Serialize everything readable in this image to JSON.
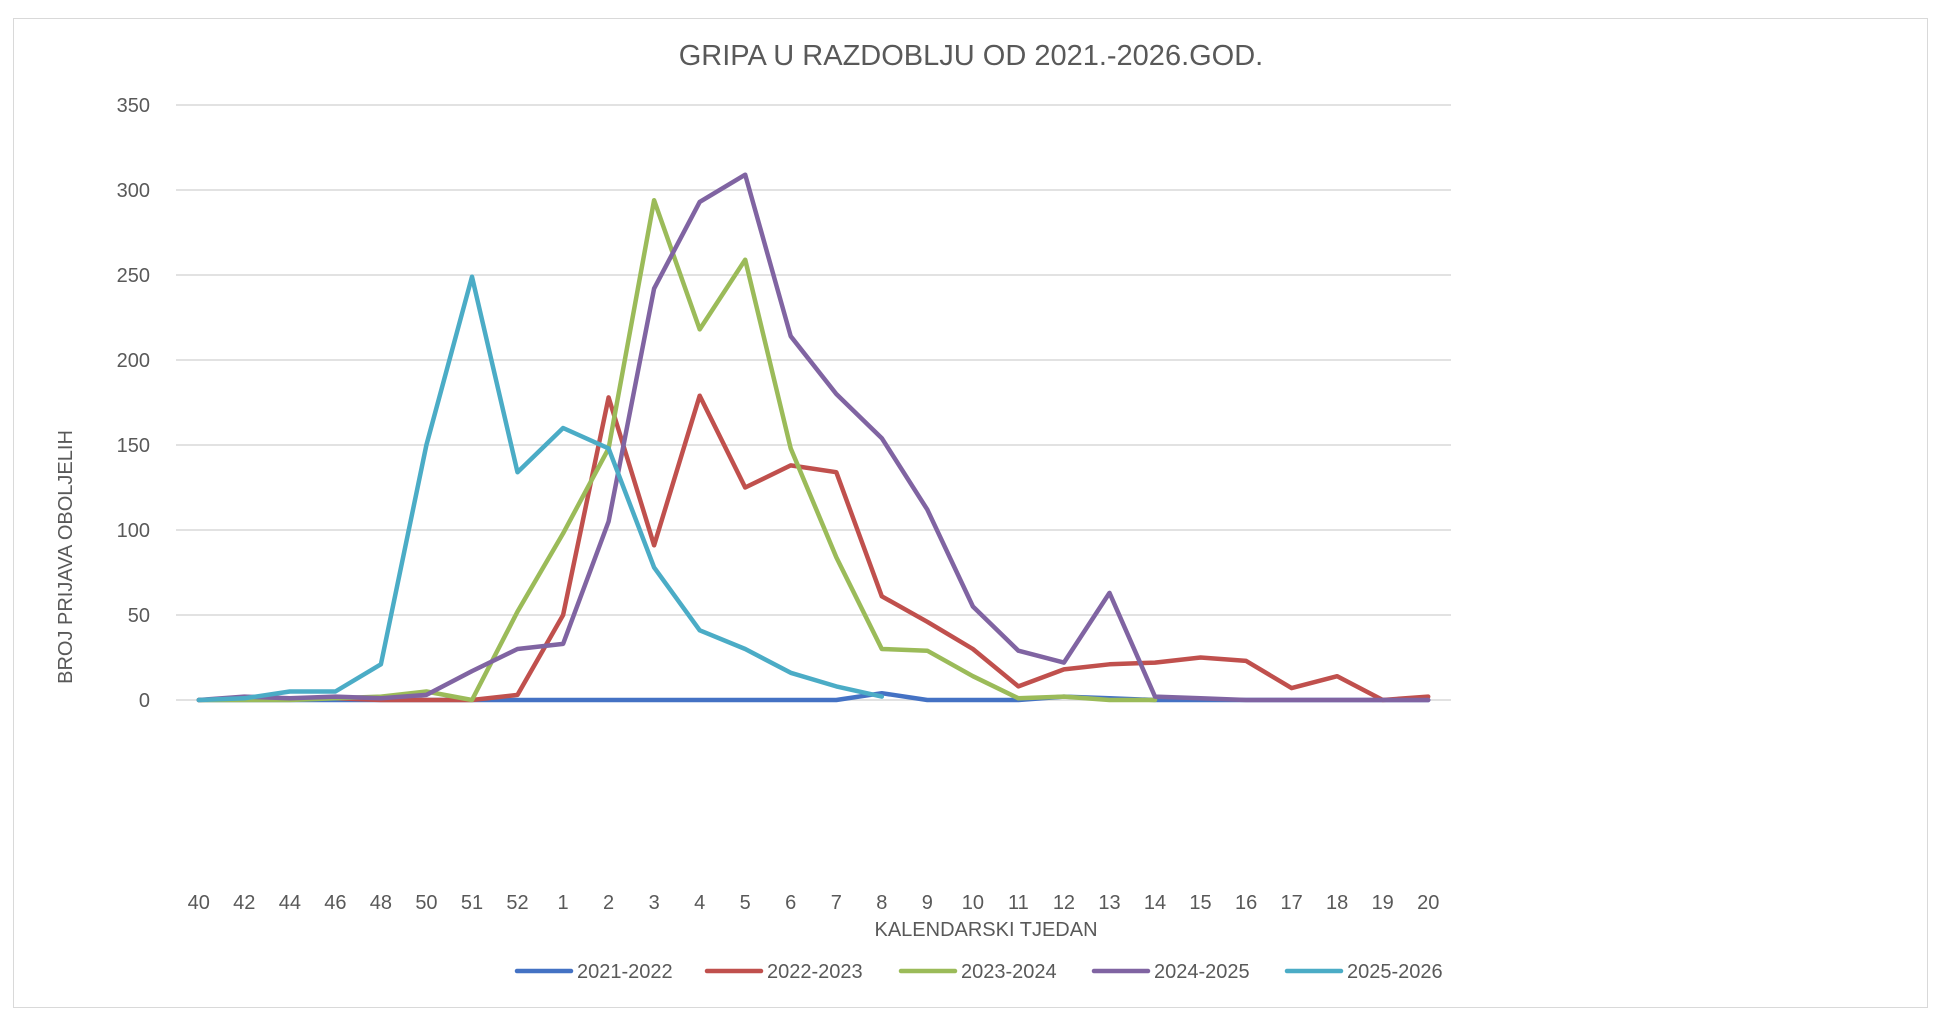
{
  "chart_data": {
    "type": "line",
    "title": "GRIPA U RAZDOBLJU OD 2021.-2026.GOD.",
    "xlabel": "KALENDARSKI TJEDAN",
    "ylabel": "BROJ PRIJAVA OBOLJELIH",
    "categories": [
      "40",
      "42",
      "44",
      "46",
      "48",
      "50",
      "51",
      "52",
      "1",
      "2",
      "3",
      "4",
      "5",
      "6",
      "7",
      "8",
      "9",
      "10",
      "11",
      "12",
      "13",
      "14",
      "15",
      "16",
      "17",
      "18",
      "19",
      "20"
    ],
    "ylim": [
      0,
      350
    ],
    "yticks": [
      0,
      50,
      100,
      150,
      200,
      250,
      300,
      350
    ],
    "grid": true,
    "legend_position": "bottom",
    "series": [
      {
        "name": "2021-2022",
        "color": "#4472c4",
        "values": [
          0,
          0,
          0,
          0,
          0,
          0,
          0,
          0,
          0,
          0,
          0,
          0,
          0,
          0,
          0,
          4,
          0,
          0,
          0,
          2,
          1,
          0,
          0,
          0,
          0,
          0,
          0,
          0
        ]
      },
      {
        "name": "2022-2023",
        "color": "#c0504d",
        "values": [
          0,
          1,
          1,
          1,
          0,
          0,
          0,
          3,
          50,
          178,
          91,
          179,
          125,
          138,
          134,
          61,
          46,
          30,
          8,
          18,
          21,
          22,
          25,
          23,
          7,
          14,
          0,
          2
        ]
      },
      {
        "name": "2023-2024",
        "color": "#9bbb59",
        "values": [
          0,
          0,
          0,
          1,
          2,
          5,
          0,
          52,
          98,
          148,
          294,
          218,
          259,
          148,
          84,
          30,
          29,
          14,
          1,
          2,
          0,
          0,
          null,
          null,
          null,
          null,
          null,
          null
        ]
      },
      {
        "name": "2024-2025",
        "color": "#8064a2",
        "values": [
          0,
          2,
          1,
          2,
          1,
          3,
          17,
          30,
          33,
          105,
          242,
          293,
          309,
          214,
          180,
          154,
          112,
          55,
          29,
          22,
          63,
          2,
          1,
          0,
          0,
          0,
          0,
          0
        ]
      },
      {
        "name": "2025-2026",
        "color": "#4bacc6",
        "values": [
          0,
          1,
          5,
          5,
          21,
          150,
          249,
          134,
          160,
          148,
          78,
          41,
          30,
          16,
          8,
          2,
          null,
          null,
          null,
          null,
          null,
          null,
          null,
          null,
          null,
          null,
          null,
          null
        ]
      }
    ]
  }
}
